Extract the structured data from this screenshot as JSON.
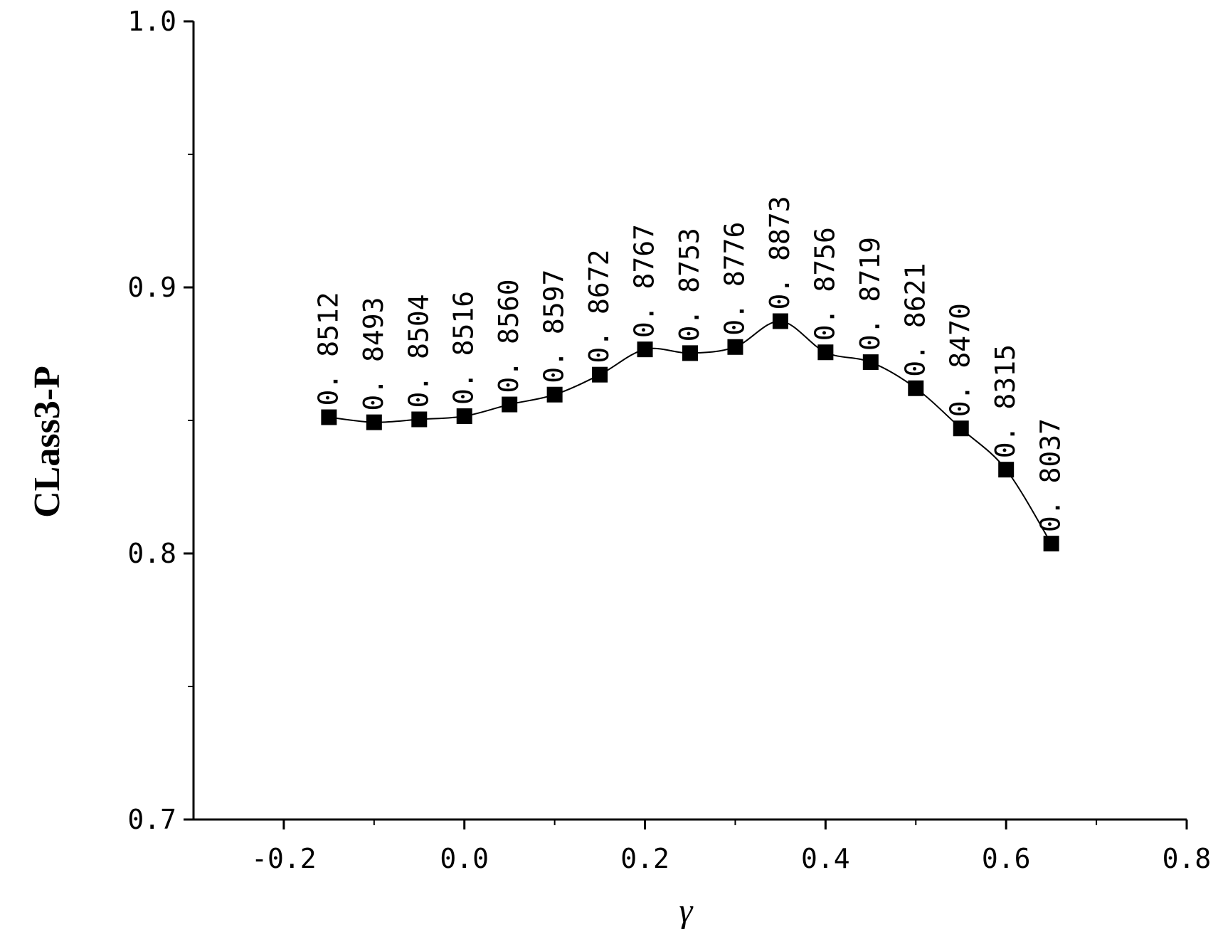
{
  "chart_data": {
    "type": "line",
    "xlabel": "γ",
    "ylabel": "CLass3-P",
    "xlim": [
      -0.3,
      0.8
    ],
    "ylim": [
      0.7,
      1.0
    ],
    "x_ticks": [
      "-0.2",
      "0.0",
      "0.2",
      "0.4",
      "0.6",
      "0.8"
    ],
    "y_ticks": [
      "0.7",
      "0.8",
      "0.9",
      "1.0"
    ],
    "grid": false,
    "legend": "none",
    "marker": "square",
    "color": "#000000",
    "series": [
      {
        "x": [
          -0.15,
          -0.1,
          -0.05,
          0.0,
          0.05,
          0.1,
          0.15,
          0.2,
          0.25,
          0.3,
          0.35,
          0.4,
          0.45,
          0.5,
          0.55,
          0.6,
          0.65
        ],
        "values": [
          0.8512,
          0.8493,
          0.8504,
          0.8516,
          0.856,
          0.8597,
          0.8672,
          0.8767,
          0.8753,
          0.8776,
          0.8873,
          0.8756,
          0.8719,
          0.8621,
          0.847,
          0.8315,
          0.8037
        ],
        "labels": [
          "0. 8512",
          "0. 8493",
          "0. 8504",
          "0. 8516",
          "0. 8560",
          "0. 8597",
          "0. 8672",
          "0. 8767",
          "0. 8753",
          "0. 8776",
          "0. 8873",
          "0. 8756",
          "0. 8719",
          "0. 8621",
          "0. 8470",
          "0. 8315",
          "0. 8037"
        ]
      }
    ]
  }
}
